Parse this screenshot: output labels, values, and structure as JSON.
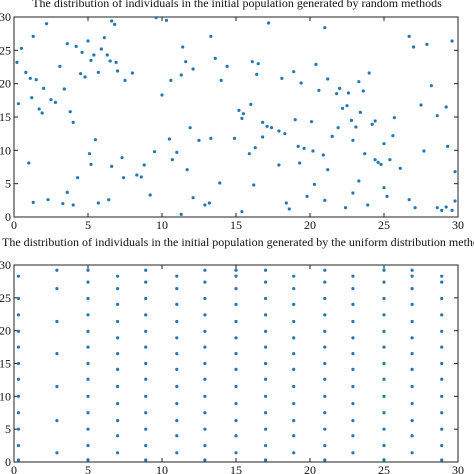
{
  "chart_data": [
    {
      "type": "scatter",
      "title": "The distribution of individuals in the initial population generated by random methods",
      "xlabel": "",
      "ylabel": "",
      "xlim": [
        0,
        30
      ],
      "ylim": [
        0,
        30
      ],
      "xticks": [
        "0",
        "5",
        "10",
        "15",
        "20",
        "25",
        "30"
      ],
      "yticks": [
        "0",
        "5",
        "10",
        "15",
        "20",
        "25",
        "30"
      ],
      "color": "#1f77b4",
      "points": [
        [
          0.2,
          23.2
        ],
        [
          0.3,
          17.0
        ],
        [
          0.5,
          25.3
        ],
        [
          0.8,
          21.7
        ],
        [
          1.1,
          20.8
        ],
        [
          1.2,
          17.9
        ],
        [
          1.3,
          27.1
        ],
        [
          1.5,
          20.6
        ],
        [
          1.7,
          16.2
        ],
        [
          1.9,
          15.6
        ],
        [
          2.0,
          19.3
        ],
        [
          2.2,
          29.0
        ],
        [
          2.5,
          17.6
        ],
        [
          2.8,
          17.2
        ],
        [
          3.1,
          22.6
        ],
        [
          3.4,
          19.2
        ],
        [
          3.6,
          26.0
        ],
        [
          3.8,
          15.8
        ],
        [
          4.0,
          14.2
        ],
        [
          4.2,
          25.6
        ],
        [
          4.5,
          21.5
        ],
        [
          4.6,
          24.7
        ],
        [
          4.8,
          21.0
        ],
        [
          5.0,
          26.4
        ],
        [
          5.2,
          23.5
        ],
        [
          5.4,
          24.3
        ],
        [
          5.5,
          11.6
        ],
        [
          5.7,
          21.7
        ],
        [
          5.9,
          25.2
        ],
        [
          6.1,
          26.9
        ],
        [
          6.3,
          24.3
        ],
        [
          6.5,
          23.4
        ],
        [
          6.6,
          29.4
        ],
        [
          6.8,
          28.9
        ],
        [
          6.9,
          23.2
        ],
        [
          7.0,
          21.9
        ],
        [
          7.5,
          20.5
        ],
        [
          8.0,
          21.6
        ],
        [
          9.6,
          29.9
        ],
        [
          10.0,
          18.3
        ],
        [
          10.3,
          29.5
        ],
        [
          10.6,
          20.5
        ],
        [
          11.3,
          21.3
        ],
        [
          11.4,
          25.5
        ],
        [
          11.6,
          23.3
        ],
        [
          11.9,
          13.4
        ],
        [
          12.1,
          22.2
        ],
        [
          13.3,
          27.1
        ],
        [
          13.6,
          23.8
        ],
        [
          14.0,
          20.5
        ],
        [
          14.4,
          22.6
        ],
        [
          15.2,
          16.0
        ],
        [
          15.4,
          14.8
        ],
        [
          15.5,
          15.5
        ],
        [
          16.0,
          16.9
        ],
        [
          16.1,
          23.3
        ],
        [
          16.4,
          21.4
        ],
        [
          16.5,
          23.0
        ],
        [
          16.8,
          14.2
        ],
        [
          17.1,
          13.6
        ],
        [
          17.2,
          29.1
        ],
        [
          17.4,
          13.4
        ],
        [
          17.9,
          12.9
        ],
        [
          18.1,
          20.8
        ],
        [
          18.3,
          12.5
        ],
        [
          18.9,
          21.8
        ],
        [
          19.0,
          14.6
        ],
        [
          19.2,
          10.6
        ],
        [
          19.4,
          20.1
        ],
        [
          19.6,
          10.3
        ],
        [
          20.1,
          14.3
        ],
        [
          20.4,
          22.9
        ],
        [
          20.6,
          19.0
        ],
        [
          20.9,
          9.3
        ],
        [
          21.0,
          28.4
        ],
        [
          21.2,
          20.7
        ],
        [
          21.5,
          12.1
        ],
        [
          21.8,
          18.5
        ],
        [
          21.9,
          13.4
        ],
        [
          22.0,
          19.3
        ],
        [
          22.2,
          16.3
        ],
        [
          22.5,
          16.7
        ],
        [
          22.6,
          18.6
        ],
        [
          22.8,
          14.5
        ],
        [
          22.9,
          11.5
        ],
        [
          23.1,
          13.5
        ],
        [
          23.3,
          20.3
        ],
        [
          23.4,
          15.7
        ],
        [
          23.6,
          18.9
        ],
        [
          23.7,
          9.5
        ],
        [
          24.0,
          21.6
        ],
        [
          24.2,
          13.9
        ],
        [
          24.4,
          14.4
        ],
        [
          24.6,
          8.2
        ],
        [
          24.8,
          7.9
        ],
        [
          25.0,
          11.0
        ],
        [
          25.4,
          8.6
        ],
        [
          25.6,
          12.2
        ],
        [
          25.7,
          14.9
        ],
        [
          26.1,
          7.3
        ],
        [
          26.7,
          27.1
        ],
        [
          27.0,
          25.5
        ],
        [
          27.5,
          16.8
        ],
        [
          27.9,
          25.9
        ],
        [
          28.2,
          19.7
        ],
        [
          28.6,
          15.2
        ],
        [
          29.2,
          16.5
        ],
        [
          29.3,
          10.6
        ],
        [
          29.6,
          26.4
        ],
        [
          29.8,
          6.8
        ],
        [
          1.0,
          8.1
        ],
        [
          1.3,
          2.2
        ],
        [
          3.3,
          2.0
        ],
        [
          3.6,
          3.7
        ],
        [
          4.0,
          1.8
        ],
        [
          4.3,
          5.9
        ],
        [
          5.1,
          9.5
        ],
        [
          5.2,
          7.9
        ],
        [
          5.7,
          2.1
        ],
        [
          6.4,
          2.6
        ],
        [
          7.3,
          8.9
        ],
        [
          7.4,
          5.9
        ],
        [
          8.6,
          6.0
        ],
        [
          8.8,
          7.8
        ],
        [
          9.5,
          9.8
        ],
        [
          10.5,
          11.7
        ],
        [
          10.7,
          8.6
        ],
        [
          11.0,
          9.7
        ],
        [
          11.3,
          0.4
        ],
        [
          11.7,
          7.1
        ],
        [
          12.1,
          2.9
        ],
        [
          12.5,
          11.5
        ],
        [
          12.9,
          1.8
        ],
        [
          13.3,
          11.8
        ],
        [
          13.9,
          5.1
        ],
        [
          14.9,
          11.8
        ],
        [
          15.4,
          0.8
        ],
        [
          15.9,
          9.5
        ],
        [
          16.3,
          10.4
        ],
        [
          16.8,
          12.0
        ],
        [
          17.9,
          7.8
        ],
        [
          18.4,
          2.1
        ],
        [
          18.6,
          1.2
        ],
        [
          19.8,
          3.1
        ],
        [
          20.2,
          9.9
        ],
        [
          21.0,
          2.5
        ],
        [
          21.2,
          7.1
        ],
        [
          22.4,
          1.4
        ],
        [
          22.9,
          3.6
        ],
        [
          23.9,
          1.8
        ],
        [
          24.4,
          8.6
        ],
        [
          25.0,
          4.4
        ],
        [
          25.2,
          3.1
        ],
        [
          26.7,
          2.6
        ],
        [
          27.1,
          1.4
        ],
        [
          27.7,
          9.9
        ],
        [
          28.6,
          1.4
        ],
        [
          28.9,
          1.0
        ],
        [
          29.2,
          1.5
        ],
        [
          29.8,
          2.4
        ],
        [
          29.6,
          1.0
        ],
        [
          8.3,
          6.3
        ],
        [
          19.3,
          8.1
        ],
        [
          16.2,
          4.8
        ],
        [
          9.2,
          3.3
        ],
        [
          13.2,
          2.1
        ],
        [
          2.3,
          2.6
        ],
        [
          6.6,
          7.6
        ],
        [
          20.3,
          4.9
        ],
        [
          23.3,
          5.4
        ]
      ]
    },
    {
      "type": "scatter",
      "title": "The distribution of individuals in the initial population generated by the uniform distribution method",
      "xlabel": "",
      "ylabel": "",
      "xlim": [
        0,
        30
      ],
      "ylim": [
        0,
        30
      ],
      "xticks": [
        "0",
        "5",
        "10",
        "15",
        "20",
        "25",
        "30"
      ],
      "yticks": [
        "0",
        "5",
        "10",
        "15",
        "20",
        "25",
        "30"
      ],
      "color": "#1f77b4",
      "grid_columns_x": [
        0.3,
        2.9,
        5.0,
        7.0,
        8.9,
        11.0,
        12.9,
        15.0,
        17.0,
        18.9,
        21.0,
        22.9,
        25.0,
        26.9,
        28.9
      ],
      "grid_rows_y": [
        0.3,
        1.4,
        2.5,
        4.0,
        5.0,
        6.3,
        7.5,
        8.9,
        10.0,
        11.5,
        12.6,
        14.1,
        15.0,
        16.5,
        17.5,
        18.9,
        19.9,
        21.4,
        22.4,
        24.0,
        24.9,
        26.4,
        27.4,
        28.3,
        29.2
      ],
      "column_row_pattern": [
        [
          0,
          2,
          4,
          6,
          8,
          10,
          12,
          14,
          16,
          18,
          20,
          23
        ],
        [
          1,
          5,
          9,
          13,
          17,
          21,
          24
        ],
        [
          0,
          2,
          4,
          6,
          8,
          10,
          12,
          14,
          16,
          18,
          20,
          22,
          24
        ],
        [
          1,
          3,
          5,
          7,
          9,
          11,
          13,
          15,
          17,
          19,
          21,
          23
        ],
        [
          0,
          2,
          4,
          6,
          8,
          10,
          12,
          14,
          16,
          18,
          20,
          22,
          24
        ],
        [
          1,
          3,
          5,
          7,
          9,
          11,
          13,
          15,
          17,
          19,
          21,
          23
        ],
        [
          0,
          2,
          4,
          6,
          8,
          10,
          12,
          14,
          16,
          18,
          20,
          22,
          24
        ],
        [
          1,
          3,
          5,
          7,
          9,
          11,
          13,
          15,
          17,
          19,
          21,
          23,
          24
        ],
        [
          0,
          2,
          4,
          6,
          8,
          10,
          12,
          14,
          16,
          18,
          20,
          22,
          24
        ],
        [
          1,
          3,
          5,
          7,
          9,
          11,
          13,
          15,
          17,
          19,
          21,
          23
        ],
        [
          0,
          2,
          4,
          6,
          8,
          10,
          12,
          14,
          16,
          18,
          20,
          22,
          24
        ],
        [
          1,
          3,
          5,
          7,
          9,
          11,
          13,
          15,
          17,
          19,
          21,
          23
        ],
        [
          0,
          2,
          4,
          6,
          8,
          10,
          12,
          14,
          16,
          18,
          20,
          22,
          24
        ],
        [
          1,
          3,
          5,
          7,
          9,
          11,
          13,
          15,
          17,
          19,
          21,
          23,
          24
        ],
        [
          0,
          2,
          4,
          6,
          8,
          10,
          12,
          14,
          16,
          18,
          20,
          22,
          23
        ]
      ]
    }
  ]
}
